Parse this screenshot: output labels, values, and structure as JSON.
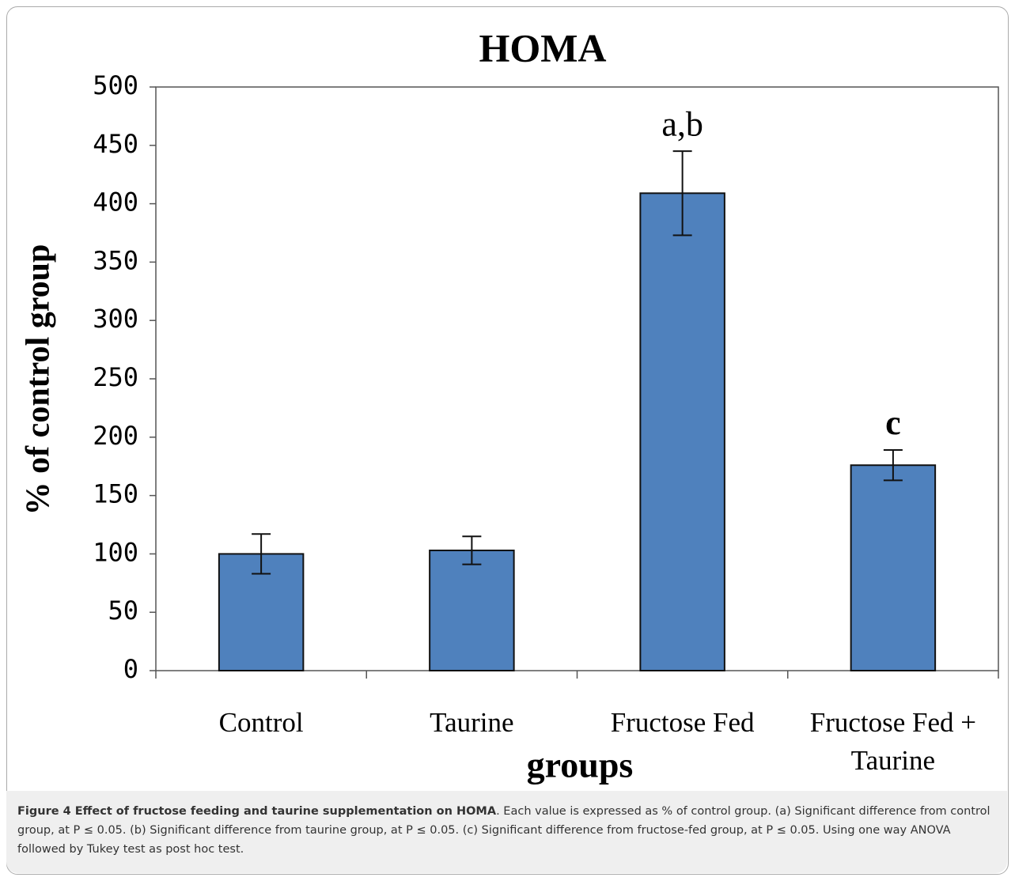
{
  "chart_data": {
    "type": "bar",
    "title": "HOMA",
    "x_label": "groups",
    "y_label": "% of control group",
    "categories": [
      "Control",
      "Taurine",
      "Fructose Fed",
      "Fructose Fed + Taurine"
    ],
    "values": [
      100,
      103,
      409,
      176
    ],
    "errors": [
      17,
      12,
      36,
      13
    ],
    "annotations": [
      null,
      null,
      "a,b",
      "c"
    ],
    "color": "#4f81bd",
    "ylim": [
      0,
      500
    ],
    "yticks": [
      0,
      50,
      100,
      150,
      200,
      250,
      300,
      350,
      400,
      450,
      500
    ],
    "grid": false
  },
  "caption": {
    "label": "Figure 4 Effect of fructose feeding and taurine supplementation on HOMA",
    "text": ". Each value is expressed as % of control group. (a) Significant difference from control group, at P ≤ 0.05. (b) Significant difference from taurine group, at P ≤ 0.05. (c) Significant difference from fructose-fed group, at P ≤ 0.05. Using one way ANOVA followed by Tukey test as post hoc test."
  }
}
